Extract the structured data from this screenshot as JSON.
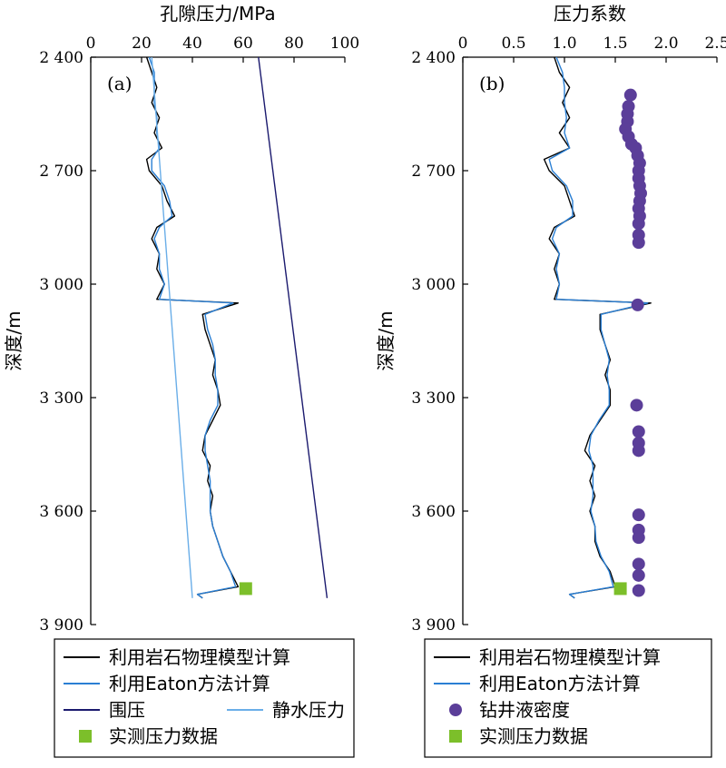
{
  "chart_data": [
    {
      "type": "line",
      "panel_label": "(a)",
      "xlabel": "孔隙压力/MPa",
      "ylabel": "深度/m",
      "xlim": [
        0,
        100
      ],
      "ylim": [
        2400,
        3900
      ],
      "y_inverted": true,
      "x_axis_position": "top",
      "xticks": [
        0,
        20,
        40,
        60,
        80,
        100
      ],
      "xtick_labels": [
        "0",
        "20",
        "40",
        "60",
        "80",
        "100"
      ],
      "yticks": [
        2400,
        2700,
        3000,
        3300,
        3600,
        3900
      ],
      "ytick_labels": [
        "2 400",
        "2 700",
        "3 000",
        "3 300",
        "3 600",
        "3 900"
      ],
      "series": [
        {
          "name": "利用岩石物理模型计算",
          "color": "#000000",
          "points": [
            [
              22,
              2400
            ],
            [
              24,
              2440
            ],
            [
              26,
              2480
            ],
            [
              24,
              2520
            ],
            [
              27,
              2560
            ],
            [
              25,
              2600
            ],
            [
              28,
              2640
            ],
            [
              22,
              2670
            ],
            [
              23,
              2700
            ],
            [
              28,
              2740
            ],
            [
              30,
              2780
            ],
            [
              33,
              2820
            ],
            [
              26,
              2850
            ],
            [
              24,
              2880
            ],
            [
              27,
              2920
            ],
            [
              26,
              2960
            ],
            [
              29,
              3000
            ],
            [
              26,
              3040
            ],
            [
              58,
              3050
            ],
            [
              44,
              3080
            ],
            [
              45,
              3120
            ],
            [
              47,
              3160
            ],
            [
              49,
              3200
            ],
            [
              48,
              3240
            ],
            [
              50,
              3280
            ],
            [
              51,
              3320
            ],
            [
              48,
              3360
            ],
            [
              45,
              3400
            ],
            [
              44,
              3440
            ],
            [
              47,
              3480
            ],
            [
              46,
              3520
            ],
            [
              48,
              3560
            ],
            [
              47,
              3600
            ],
            [
              48,
              3640
            ],
            [
              50,
              3680
            ],
            [
              52,
              3720
            ],
            [
              55,
              3760
            ],
            [
              58,
              3800
            ],
            [
              42,
              3820
            ],
            [
              44,
              3830
            ]
          ]
        },
        {
          "name": "利用Eaton方法计算",
          "color": "#2a7fd4",
          "points": [
            [
              23,
              2400
            ],
            [
              25,
              2440
            ],
            [
              25,
              2480
            ],
            [
              25,
              2520
            ],
            [
              26,
              2560
            ],
            [
              26,
              2600
            ],
            [
              27,
              2640
            ],
            [
              24,
              2670
            ],
            [
              24,
              2700
            ],
            [
              29,
              2740
            ],
            [
              31,
              2780
            ],
            [
              32,
              2820
            ],
            [
              27,
              2850
            ],
            [
              25,
              2880
            ],
            [
              27,
              2920
            ],
            [
              27,
              2960
            ],
            [
              29,
              3000
            ],
            [
              27,
              3040
            ],
            [
              56,
              3050
            ],
            [
              45,
              3080
            ],
            [
              46,
              3120
            ],
            [
              48,
              3160
            ],
            [
              49,
              3200
            ],
            [
              49,
              3240
            ],
            [
              50,
              3280
            ],
            [
              50,
              3320
            ],
            [
              47,
              3360
            ],
            [
              45,
              3400
            ],
            [
              45,
              3440
            ],
            [
              46,
              3480
            ],
            [
              47,
              3520
            ],
            [
              47,
              3560
            ],
            [
              47,
              3600
            ],
            [
              48,
              3640
            ],
            [
              50,
              3680
            ],
            [
              52,
              3720
            ],
            [
              55,
              3760
            ],
            [
              57,
              3800
            ],
            [
              42,
              3820
            ],
            [
              44,
              3830
            ]
          ]
        },
        {
          "name": "围压",
          "color": "#1b1a6e",
          "points": [
            [
              66,
              2400
            ],
            [
              93,
              3830
            ]
          ]
        },
        {
          "name": "静水压力",
          "color": "#6aaee8",
          "points": [
            [
              24,
              2400
            ],
            [
              40,
              3830
            ]
          ]
        },
        {
          "name": "实测压力数据",
          "color": "#7cbf2a",
          "marker": "square",
          "points": [
            [
              61,
              3805
            ]
          ]
        }
      ]
    },
    {
      "type": "line",
      "panel_label": "(b)",
      "xlabel": "压力系数",
      "ylabel": "深度/m",
      "xlim": [
        0,
        2.5
      ],
      "ylim": [
        2400,
        3900
      ],
      "y_inverted": true,
      "x_axis_position": "top",
      "xticks": [
        0,
        0.5,
        1.0,
        1.5,
        2.0,
        2.5
      ],
      "xtick_labels": [
        "0",
        "0.5",
        "1.0",
        "1.5",
        "2.0",
        "2.5"
      ],
      "yticks": [
        2400,
        2700,
        3000,
        3300,
        3600,
        3900
      ],
      "ytick_labels": [
        "2 400",
        "2 700",
        "3 000",
        "3 300",
        "3 600",
        "3 900"
      ],
      "series": [
        {
          "name": "利用岩石物理模型计算",
          "color": "#000000",
          "points": [
            [
              0.9,
              2400
            ],
            [
              0.95,
              2440
            ],
            [
              1.05,
              2480
            ],
            [
              0.98,
              2520
            ],
            [
              1.05,
              2560
            ],
            [
              0.95,
              2600
            ],
            [
              1.05,
              2640
            ],
            [
              0.8,
              2670
            ],
            [
              0.85,
              2700
            ],
            [
              1.0,
              2740
            ],
            [
              1.05,
              2780
            ],
            [
              1.1,
              2820
            ],
            [
              0.9,
              2850
            ],
            [
              0.85,
              2880
            ],
            [
              0.95,
              2920
            ],
            [
              0.9,
              2960
            ],
            [
              0.95,
              3000
            ],
            [
              0.9,
              3040
            ],
            [
              1.85,
              3050
            ],
            [
              1.35,
              3080
            ],
            [
              1.35,
              3120
            ],
            [
              1.4,
              3160
            ],
            [
              1.45,
              3200
            ],
            [
              1.4,
              3240
            ],
            [
              1.45,
              3280
            ],
            [
              1.45,
              3320
            ],
            [
              1.35,
              3360
            ],
            [
              1.25,
              3400
            ],
            [
              1.2,
              3440
            ],
            [
              1.3,
              3480
            ],
            [
              1.25,
              3520
            ],
            [
              1.3,
              3560
            ],
            [
              1.25,
              3600
            ],
            [
              1.3,
              3640
            ],
            [
              1.3,
              3680
            ],
            [
              1.35,
              3720
            ],
            [
              1.45,
              3760
            ],
            [
              1.5,
              3800
            ],
            [
              1.05,
              3820
            ],
            [
              1.1,
              3830
            ]
          ]
        },
        {
          "name": "利用Eaton方法计算",
          "color": "#2a7fd4",
          "points": [
            [
              0.92,
              2400
            ],
            [
              0.98,
              2440
            ],
            [
              1.0,
              2480
            ],
            [
              1.0,
              2520
            ],
            [
              1.02,
              2560
            ],
            [
              1.0,
              2600
            ],
            [
              1.05,
              2640
            ],
            [
              0.85,
              2670
            ],
            [
              0.88,
              2700
            ],
            [
              1.02,
              2740
            ],
            [
              1.08,
              2780
            ],
            [
              1.08,
              2820
            ],
            [
              0.92,
              2850
            ],
            [
              0.88,
              2880
            ],
            [
              0.95,
              2920
            ],
            [
              0.92,
              2960
            ],
            [
              0.95,
              3000
            ],
            [
              0.92,
              3040
            ],
            [
              1.82,
              3050
            ],
            [
              1.36,
              3080
            ],
            [
              1.36,
              3120
            ],
            [
              1.4,
              3160
            ],
            [
              1.44,
              3200
            ],
            [
              1.42,
              3240
            ],
            [
              1.44,
              3280
            ],
            [
              1.44,
              3320
            ],
            [
              1.34,
              3360
            ],
            [
              1.26,
              3400
            ],
            [
              1.24,
              3440
            ],
            [
              1.28,
              3480
            ],
            [
              1.28,
              3520
            ],
            [
              1.28,
              3560
            ],
            [
              1.26,
              3600
            ],
            [
              1.3,
              3640
            ],
            [
              1.31,
              3680
            ],
            [
              1.36,
              3720
            ],
            [
              1.44,
              3760
            ],
            [
              1.48,
              3800
            ],
            [
              1.05,
              3820
            ],
            [
              1.1,
              3830
            ]
          ]
        },
        {
          "name": "钻井液密度",
          "color": "#5b3e99",
          "marker": "circle",
          "points": [
            [
              1.65,
              2500
            ],
            [
              1.63,
              2530
            ],
            [
              1.62,
              2550
            ],
            [
              1.62,
              2570
            ],
            [
              1.6,
              2590
            ],
            [
              1.63,
              2610
            ],
            [
              1.66,
              2630
            ],
            [
              1.7,
              2640
            ],
            [
              1.72,
              2660
            ],
            [
              1.74,
              2680
            ],
            [
              1.73,
              2700
            ],
            [
              1.73,
              2720
            ],
            [
              1.74,
              2740
            ],
            [
              1.75,
              2760
            ],
            [
              1.74,
              2780
            ],
            [
              1.73,
              2800
            ],
            [
              1.74,
              2820
            ],
            [
              1.73,
              2840
            ],
            [
              1.73,
              2870
            ],
            [
              1.73,
              2890
            ],
            [
              1.72,
              3055
            ],
            [
              1.71,
              3320
            ],
            [
              1.73,
              3390
            ],
            [
              1.73,
              3420
            ],
            [
              1.73,
              3440
            ],
            [
              1.73,
              3610
            ],
            [
              1.73,
              3650
            ],
            [
              1.73,
              3670
            ],
            [
              1.73,
              3740
            ],
            [
              1.73,
              3770
            ],
            [
              1.73,
              3810
            ]
          ]
        },
        {
          "name": "实测压力数据",
          "color": "#7cbf2a",
          "marker": "square",
          "points": [
            [
              1.55,
              3805
            ]
          ]
        }
      ]
    }
  ],
  "legends": [
    [
      "利用岩石物理模型计算",
      "利用Eaton方法计算",
      "围压",
      "静水压力",
      "实测压力数据"
    ],
    [
      "利用岩石物理模型计算",
      "利用Eaton方法计算",
      "钻井液密度",
      "实测压力数据"
    ]
  ]
}
